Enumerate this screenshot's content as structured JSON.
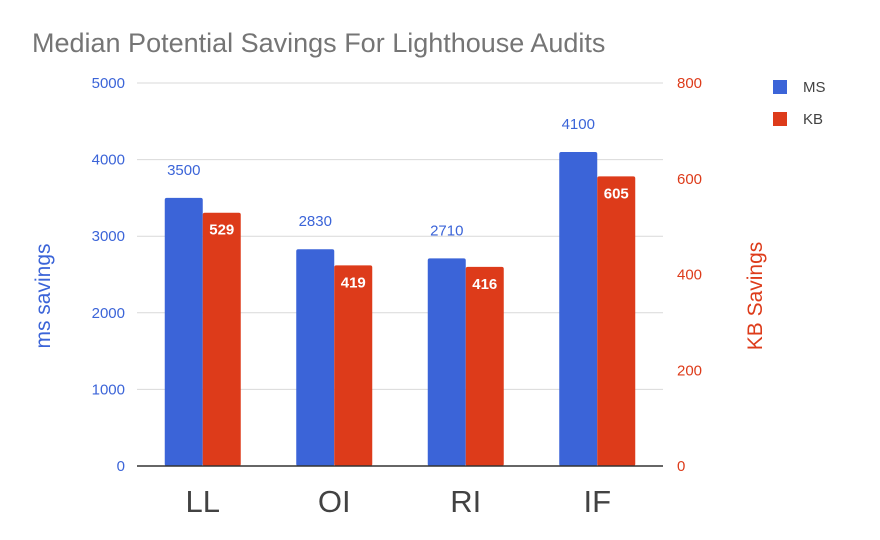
{
  "chart_data": {
    "type": "bar",
    "title": "Median Potential Savings For Lighthouse Audits",
    "categories": [
      "LL",
      "OI",
      "RI",
      "IF"
    ],
    "series": [
      {
        "name": "MS",
        "axis": "left",
        "color": "#3b64d8",
        "values": [
          3500,
          2830,
          2710,
          4100
        ],
        "labels": [
          "3500",
          "2830",
          "2710",
          "4100"
        ]
      },
      {
        "name": "KB",
        "axis": "right",
        "color": "#dd3b1a",
        "values": [
          529,
          419,
          416,
          605
        ],
        "labels": [
          "529",
          "419",
          "416",
          "605"
        ]
      }
    ],
    "y_left": {
      "label": "ms savings",
      "ylim": [
        0,
        5000
      ],
      "ticks": [
        "0",
        "1000",
        "2000",
        "3000",
        "4000",
        "5000"
      ],
      "color": "#3b64d8"
    },
    "y_right": {
      "label": "KB Savings",
      "ylim": [
        0,
        800
      ],
      "ticks": [
        "0",
        "200",
        "400",
        "600",
        "800"
      ],
      "color": "#dd3b1a"
    },
    "grid": true,
    "legend_position": "top-right"
  }
}
